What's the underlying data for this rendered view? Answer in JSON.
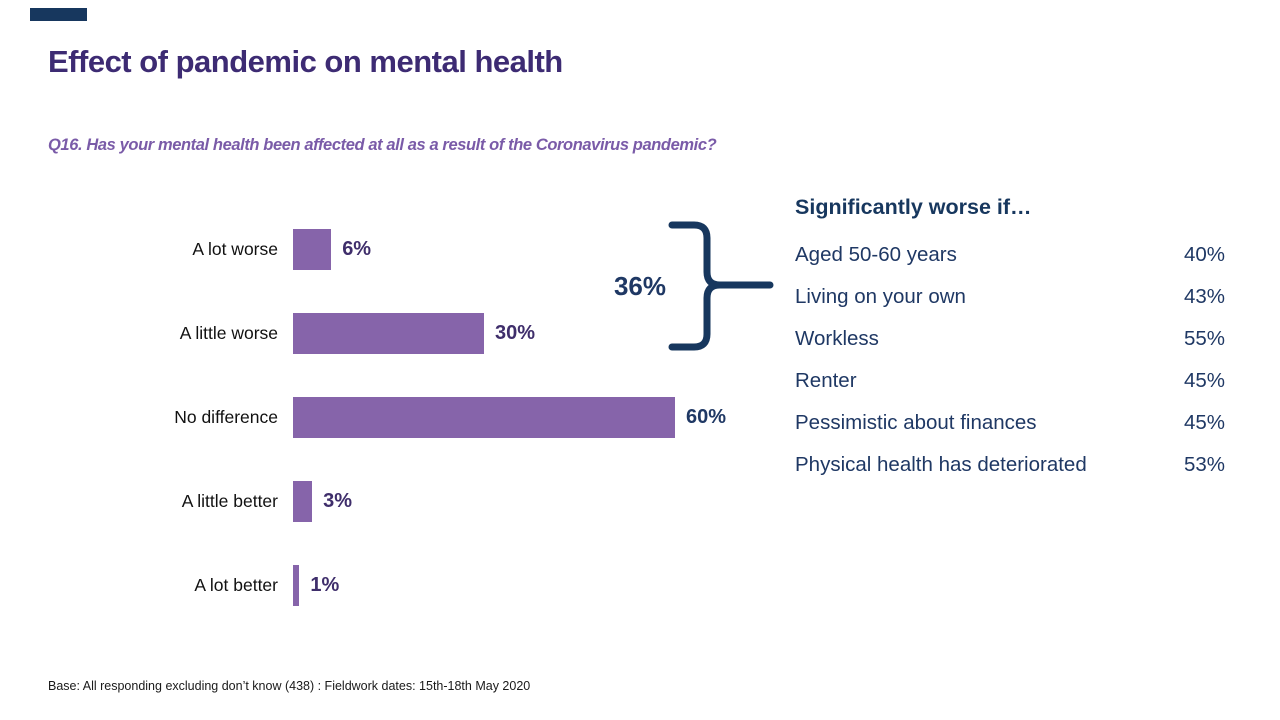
{
  "slide": {
    "title": "Effect of pandemic on mental health",
    "question": "Q16. Has your mental health been affected at all as a result of the Coronavirus pandemic?",
    "footer": "Base: All responding excluding don’t know (438) : Fieldwork dates: 15th-18th May 2020"
  },
  "chart_data": {
    "type": "bar",
    "orientation": "horizontal",
    "title": "Effect of pandemic on mental health",
    "xlabel": "",
    "ylabel": "",
    "xlim": [
      0,
      100
    ],
    "grid": false,
    "categories": [
      "A lot worse",
      "A little worse",
      "No difference",
      "A little better",
      "A lot better"
    ],
    "values": [
      6,
      30,
      60,
      3,
      1
    ],
    "value_labels": [
      "6%",
      "30%",
      "60%",
      "3%",
      "1%"
    ],
    "annotation": {
      "label": "36%",
      "applies_to": [
        "A lot worse",
        "A little worse"
      ]
    }
  },
  "side_panel": {
    "heading": "Significantly worse if…",
    "rows": [
      {
        "label": "Aged 50-60 years",
        "value": "40%"
      },
      {
        "label": "Living on your own",
        "value": "43%"
      },
      {
        "label": "Workless",
        "value": "55%"
      },
      {
        "label": "Renter",
        "value": "45%"
      },
      {
        "label": "Pessimistic about finances",
        "value": "45%"
      },
      {
        "label": "Physical health has deteriorated",
        "value": "53%"
      }
    ]
  },
  "colors": {
    "bar": "#8664AA",
    "title": "#3D2B73",
    "subtitle": "#7A5BA8",
    "navy": "#17375E",
    "navy2": "#1F3864",
    "indigo": "#3F2E6B"
  }
}
